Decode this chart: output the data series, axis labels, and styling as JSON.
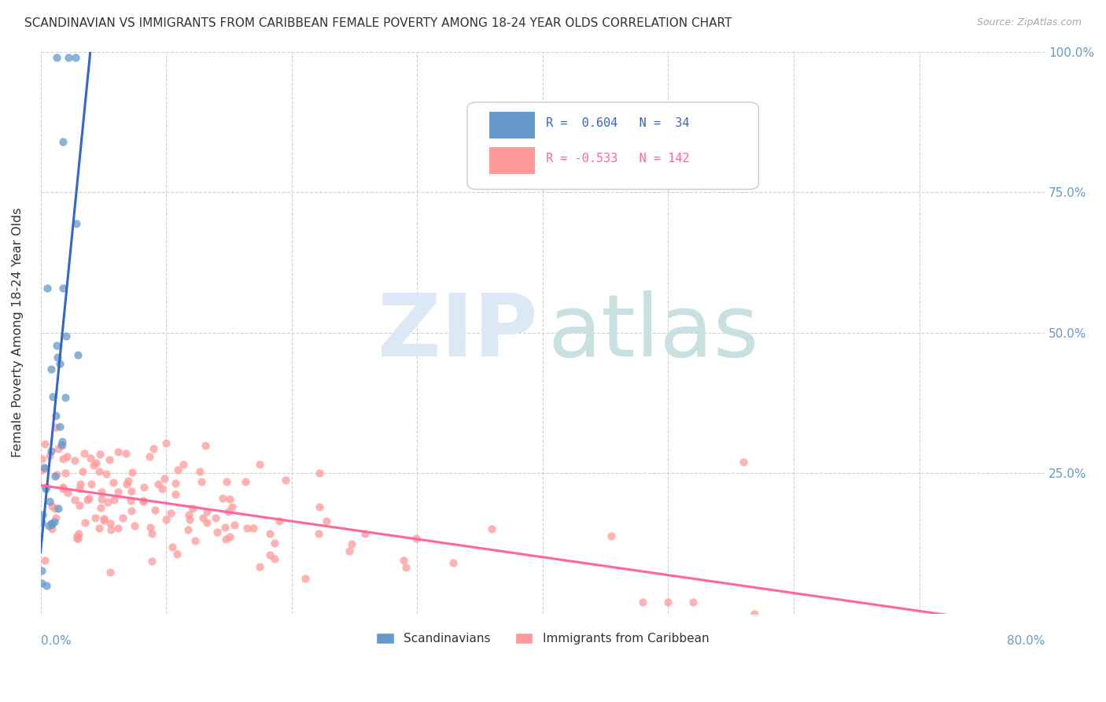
{
  "title": "SCANDINAVIAN VS IMMIGRANTS FROM CARIBBEAN FEMALE POVERTY AMONG 18-24 YEAR OLDS CORRELATION CHART",
  "source": "Source: ZipAtlas.com",
  "ylabel": "Female Poverty Among 18-24 Year Olds",
  "scand_color": "#6699cc",
  "carib_color": "#ff9999",
  "scand_line_color": "#3366cc",
  "carib_line_color": "#ff6699",
  "background_color": "#ffffff",
  "grid_color": "#cccccc",
  "watermark_zip_color": "#dce8f5",
  "watermark_atlas_color": "#c8e0e0"
}
